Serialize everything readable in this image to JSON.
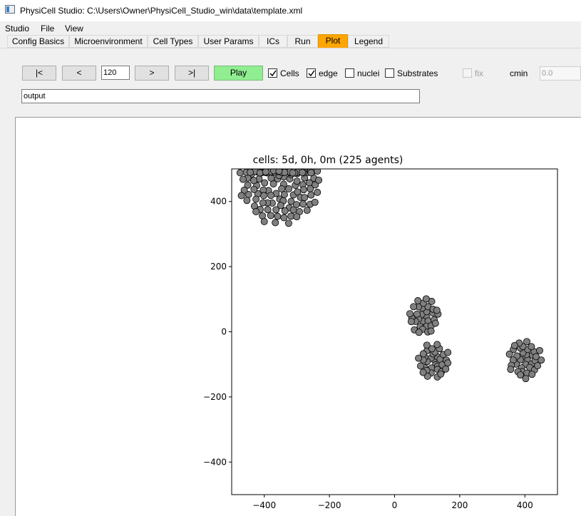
{
  "window": {
    "title": "PhysiCell Studio: C:\\Users\\Owner\\PhysiCell_Studio_win\\data\\template.xml",
    "icon": "app-window-icon"
  },
  "menu": [
    "Studio",
    "File",
    "View"
  ],
  "tabs": [
    {
      "label": "Config Basics"
    },
    {
      "label": "Microenvironment"
    },
    {
      "label": "Cell Types"
    },
    {
      "label": "User Params"
    },
    {
      "label": "ICs"
    },
    {
      "label": "Run"
    },
    {
      "label": "Plot",
      "active": true
    },
    {
      "label": "Legend"
    }
  ],
  "controls": {
    "first": "|<",
    "prev": "<",
    "frame": "120",
    "next": ">",
    "last": ">|",
    "play": "Play",
    "cells": {
      "label": "Cells",
      "checked": true
    },
    "edge": {
      "label": "edge",
      "checked": true
    },
    "nuclei": {
      "label": "nuclei",
      "checked": false
    },
    "substrates": {
      "label": "Substrates",
      "checked": false
    },
    "fix": {
      "label": "fix",
      "checked": false,
      "disabled": true
    },
    "cmin_label": "cmin",
    "cmin_value": "0.0",
    "output_dir": "output"
  },
  "colors": {
    "active_tab": "#ffa500",
    "play_button": "#90ee90",
    "cell_fill": "#808080",
    "cell_edge": "#000000"
  },
  "chart_data": {
    "type": "scatter",
    "title": "cells: 5d, 0h, 0m (225 agents)",
    "xlim": [
      -500,
      500
    ],
    "ylim": [
      -500,
      500
    ],
    "xticks": [
      -400,
      -200,
      0,
      200,
      400
    ],
    "yticks": [
      -400,
      -200,
      0,
      200,
      400
    ],
    "xtick_labels": [
      "−400",
      "−200",
      "0",
      "200",
      "400"
    ],
    "ytick_labels": [
      "−400",
      "−200",
      "0",
      "200",
      "400"
    ],
    "grid": false,
    "cell_radius": 10,
    "clusters": [
      {
        "name": "",
        "center": [
          -350,
          455
        ],
        "rx": 125,
        "ry": 125,
        "ymax": 495,
        "count": 120
      },
      {
        "name": "",
        "center": [
          90,
          45
        ],
        "rx": 48,
        "ry": 58,
        "count": 33
      },
      {
        "name": "",
        "center": [
          120,
          -90
        ],
        "rx": 48,
        "ry": 55,
        "count": 35
      },
      {
        "name": "",
        "center": [
          400,
          -85
        ],
        "rx": 52,
        "ry": 60,
        "count": 37
      }
    ]
  }
}
